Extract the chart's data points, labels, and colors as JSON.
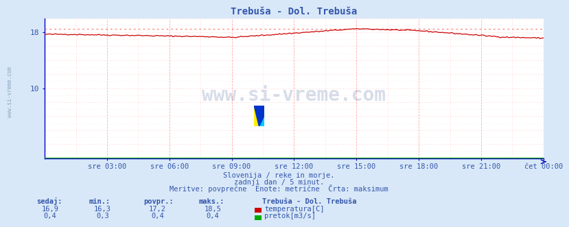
{
  "title": "Trebuša - Dol. Trebuša",
  "bg_color": "#d8e8f8",
  "plot_bg_color": "#ffffff",
  "grid_color_v": "#ffaaaa",
  "grid_color_h": "#ffcccc",
  "grid_color_minor": "#ffdddd",
  "text_color": "#3355aa",
  "spine_color": "#0000cc",
  "temp_color": "#cc0000",
  "flow_color": "#00aa00",
  "max_line_color": "#ff6666",
  "x_ticks_labels": [
    "sre 03:00",
    "sre 06:00",
    "sre 09:00",
    "sre 12:00",
    "sre 15:00",
    "sre 18:00",
    "sre 21:00",
    "čet 00:00"
  ],
  "ylim": [
    0,
    20
  ],
  "ytick_positions": [
    10,
    18
  ],
  "ytick_labels": [
    "10",
    "18"
  ],
  "temp_min": 16.3,
  "temp_max": 18.5,
  "temp_avg": 17.2,
  "temp_current": 16.9,
  "flow_min": 0.3,
  "flow_max": 0.4,
  "flow_avg": 0.4,
  "flow_current": 0.4,
  "footer_line1": "Slovenija / reke in morje.",
  "footer_line2": "zadnji dan / 5 minut.",
  "footer_line3": "Meritve: povprečne  Enote: metrične  Črta: maksimum",
  "legend_title": "Trebuša - Dol. Trebuša",
  "legend_temp": "temperatura[C]",
  "legend_flow": "pretok[m3/s]",
  "col_headers": [
    "sedaj:",
    "min.:",
    "povpr.:",
    "maks.:"
  ],
  "col_values_temp": [
    "16,9",
    "16,3",
    "17,2",
    "18,5"
  ],
  "col_values_flow": [
    "0,4",
    "0,3",
    "0,4",
    "0,4"
  ],
  "watermark": "www.si-vreme.com",
  "left_label": "www.si-vreme.com"
}
